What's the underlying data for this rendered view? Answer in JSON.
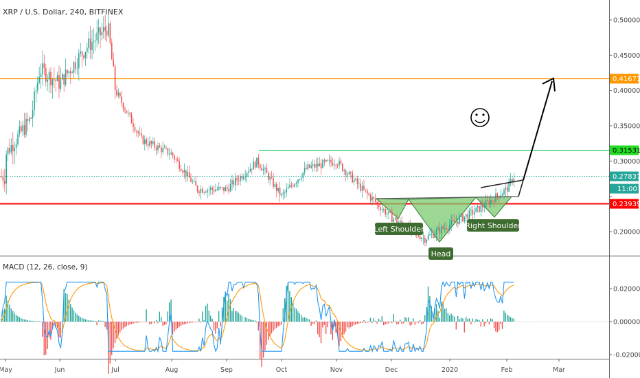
{
  "header": {
    "title": "XRP / U.S. Dollar, 240, BITFINEX",
    "macd_title": "MACD (12, 26, close, 9)"
  },
  "colors": {
    "up": "#26a69a",
    "down": "#ef5350",
    "resistance": "#ff9800",
    "neckline_support": "#ff0000",
    "mid_line": "#22c55e",
    "pattern_fill": "#7bc96f",
    "pattern_label_bg": "#3e6b2f",
    "macd_line": "#2196f3",
    "signal_line": "#ff9800"
  },
  "chart_data": [
    {
      "type": "candlestick",
      "title": "XRP / U.S. Dollar, 240, BITFINEX",
      "x_labels": [
        "May",
        "Jun",
        "Jul",
        "Aug",
        "Sep",
        "Oct",
        "Nov",
        "Dec",
        "2020",
        "Feb",
        "Mar"
      ],
      "ylim": [
        0.155,
        0.525
      ],
      "y_ticks": [
        0.2,
        0.25,
        0.3,
        0.35,
        0.4,
        0.45,
        0.5
      ],
      "y_tick_labels": [
        "0.20000",
        "",
        "0.30000",
        "0.35000",
        "0.40000",
        "0.45000",
        "0.50000"
      ],
      "approx_path": [
        {
          "x": "May",
          "y": 0.31
        },
        {
          "x": "May 15",
          "y": 0.36
        },
        {
          "x": "May 20",
          "y": 0.43
        },
        {
          "x": "Jun",
          "y": 0.41
        },
        {
          "x": "Jun 15",
          "y": 0.46
        },
        {
          "x": "Jun 27",
          "y": 0.49
        },
        {
          "x": "Jul",
          "y": 0.4
        },
        {
          "x": "Jul 15",
          "y": 0.33
        },
        {
          "x": "Aug",
          "y": 0.31
        },
        {
          "x": "Aug 15",
          "y": 0.26
        },
        {
          "x": "Sep",
          "y": 0.26
        },
        {
          "x": "Sep 18",
          "y": 0.3
        },
        {
          "x": "Oct",
          "y": 0.25
        },
        {
          "x": "Oct 15",
          "y": 0.29
        },
        {
          "x": "Nov",
          "y": 0.3
        },
        {
          "x": "Nov 15",
          "y": 0.26
        },
        {
          "x": "Dec",
          "y": 0.22
        },
        {
          "x": "Dec 18",
          "y": 0.19
        },
        {
          "x": "2020",
          "y": 0.21
        },
        {
          "x": "Jan 15",
          "y": 0.23
        },
        {
          "x": "Feb",
          "y": 0.26
        },
        {
          "x": "Feb 5",
          "y": 0.278
        }
      ],
      "price_labels": [
        {
          "value": 0.41671,
          "text": "0.41671",
          "color": "#ff9800"
        },
        {
          "value": 0.31531,
          "text": "0.31531",
          "color": "#22dd22"
        },
        {
          "value": 0.27837,
          "text": "0.27837",
          "color": "#26a69a"
        },
        {
          "value": 0.23939,
          "text": "0.23939",
          "color": "#ff0000"
        }
      ],
      "countdown_label": "11:00",
      "horizontal_lines": [
        {
          "value": 0.41671,
          "color": "#ff9800"
        },
        {
          "value": 0.31531,
          "color": "#22c55e"
        },
        {
          "value": 0.23939,
          "color": "#ff0000"
        },
        {
          "value": 0.27837,
          "color": "#26a69a",
          "style": "dotted"
        }
      ],
      "annotations": [
        "Left Shoulder",
        "Head",
        "Right Shoulder",
        "☺"
      ],
      "projection_target": 0.41671,
      "grid": false
    },
    {
      "type": "macd",
      "title": "MACD (12, 26, close, 9)",
      "ylim": [
        -0.022,
        0.028
      ],
      "y_ticks": [
        0.02,
        0.0,
        -0.02
      ],
      "y_tick_labels": [
        "0.02000",
        "0.00000",
        "-0.02000"
      ]
    }
  ]
}
